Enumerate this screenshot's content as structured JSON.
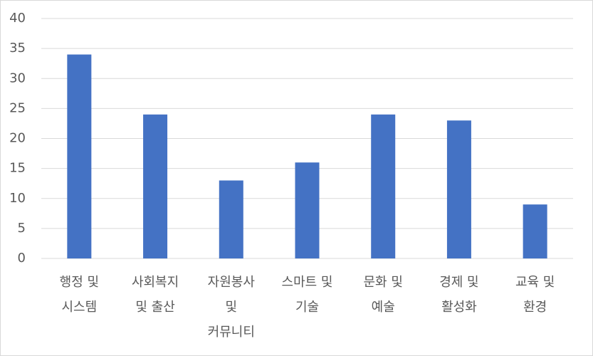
{
  "chart_data": {
    "type": "bar",
    "categories": [
      [
        "행정 및",
        "시스템"
      ],
      [
        "사회복지",
        "및 출산"
      ],
      [
        "자원봉사",
        "및",
        "커뮤니티"
      ],
      [
        "스마트 및",
        "기술"
      ],
      [
        "문화 및",
        "예술"
      ],
      [
        "경제 및",
        "활성화"
      ],
      [
        "교육 및",
        "환경"
      ]
    ],
    "values": [
      34,
      24,
      13,
      16,
      24,
      23,
      9
    ],
    "color": "#4472c4",
    "ylim": [
      0,
      40
    ],
    "yticks": [
      0,
      5,
      10,
      15,
      20,
      25,
      30,
      35,
      40
    ],
    "grid": true
  }
}
